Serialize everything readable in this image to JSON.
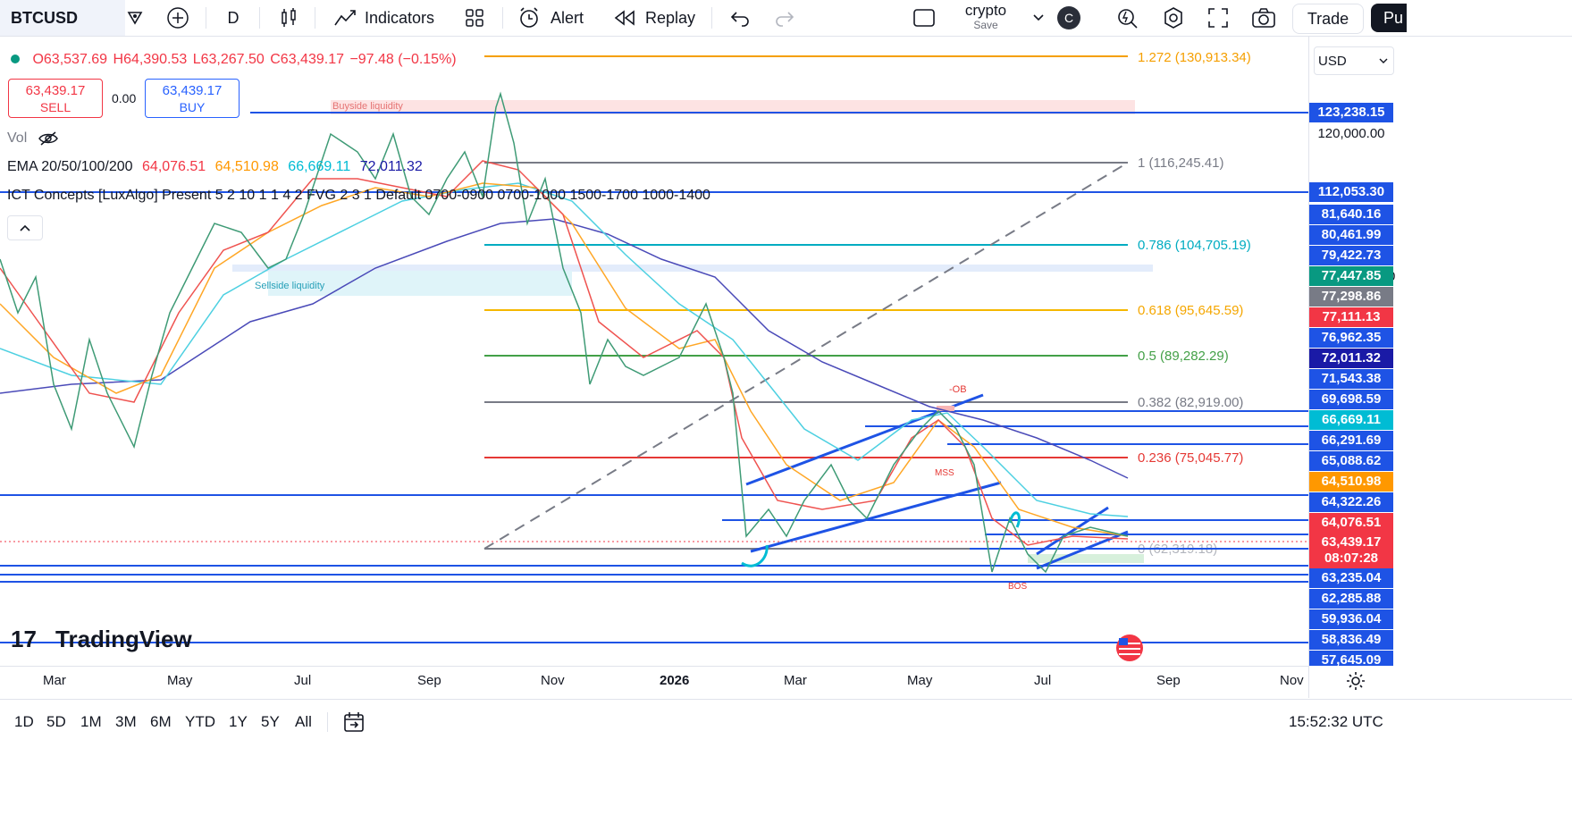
{
  "toolbar": {
    "symbol": "BTCUSD",
    "interval": "D",
    "indicators_label": "Indicators",
    "alert_label": "Alert",
    "replay_label": "Replay",
    "layout_name": "crypto",
    "layout_save": "Save",
    "avatar_letter": "C",
    "trade_label": "Trade",
    "publish_label": "Pu"
  },
  "legend": {
    "open": "O63,537.69",
    "high": "H64,390.53",
    "low": "L63,267.50",
    "close": "C63,439.17",
    "change": "−97.48 (−0.15%)",
    "sell_price": "63,439.17",
    "sell_label": "SELL",
    "spread": "0.00",
    "buy_price": "63,439.17",
    "buy_label": "BUY",
    "vol_label": "Vol",
    "ema_label": "EMA 20/50/100/200",
    "ema20": "64,076.51",
    "ema50": "64,510.98",
    "ema100": "66,669.11",
    "ema200": "72,011.32",
    "ict_label": "ICT Concepts [LuxAlgo] Present 5 2 10 1 1 4 2 FVG 2 3 1 Default 0700-0900 0700-1000 1500-1700 1000-1400"
  },
  "currency": "USD",
  "annotations": {
    "buyside": "Buyside liquidity",
    "sellside": "Sellside liquidity",
    "ob": "-OB",
    "mss": "MSS",
    "bos": "BOS"
  },
  "fib_levels": [
    {
      "label": "1.272 (130,913.34)",
      "color": "#f59f00"
    },
    {
      "label": "1 (116,245.41)",
      "color": "#787b86"
    },
    {
      "label": "0.786 (104,705.19)",
      "color": "#00acc1"
    },
    {
      "label": "0.618 (95,645.59)",
      "color": "#f5b700"
    },
    {
      "label": "0.5 (89,282.29)",
      "color": "#43a047"
    },
    {
      "label": "0.382 (82,919.00)",
      "color": "#787b86"
    },
    {
      "label": "0.236 (75,045.77)",
      "color": "#e53935"
    },
    {
      "label": "0 (62,319.18)",
      "color": "#787b86"
    }
  ],
  "price_scale": {
    "tags": [
      {
        "value": "123,238.15",
        "bg": "#1e53e5"
      },
      {
        "value": "112,053.30",
        "bg": "#1e53e5"
      },
      {
        "value": "81,640.16",
        "bg": "#1e53e5"
      },
      {
        "value": "80,461.99",
        "bg": "#1e53e5"
      },
      {
        "value": "79,422.73",
        "bg": "#1e53e5"
      },
      {
        "value": "77,447.85",
        "bg": "#089981"
      },
      {
        "value": "77,298.86",
        "bg": "#787b86"
      },
      {
        "value": "77,111.13",
        "bg": "#f23645"
      },
      {
        "value": "76,962.35",
        "bg": "#1e53e5"
      },
      {
        "value": "72,011.32",
        "bg": "#1a1aa6"
      },
      {
        "value": "71,543.38",
        "bg": "#1e53e5"
      },
      {
        "value": "69,698.59",
        "bg": "#1e53e5"
      },
      {
        "value": "66,669.11",
        "bg": "#00bcd4"
      },
      {
        "value": "66,291.69",
        "bg": "#1e53e5"
      },
      {
        "value": "65,088.62",
        "bg": "#1e53e5"
      },
      {
        "value": "64,510.98",
        "bg": "#ff9800"
      },
      {
        "value": "64,322.26",
        "bg": "#1e53e5"
      },
      {
        "value": "64,076.51",
        "bg": "#f23645"
      },
      {
        "value": "63,439.17",
        "bg": "#f23645"
      },
      {
        "value": "08:07:28",
        "bg": "#f23645"
      },
      {
        "value": "63,235.04",
        "bg": "#1e53e5"
      },
      {
        "value": "62,285.88",
        "bg": "#1e53e5"
      },
      {
        "value": "59,936.04",
        "bg": "#1e53e5"
      },
      {
        "value": "58,836.49",
        "bg": "#1e53e5"
      },
      {
        "value": "57,645.09",
        "bg": "#1e53e5"
      }
    ],
    "plain_label": "120,000.00",
    "edge_char": "0"
  },
  "time_axis": [
    "Mar",
    "May",
    "Jul",
    "Sep",
    "Nov",
    "2026",
    "Mar",
    "May",
    "Jul",
    "Sep",
    "Nov"
  ],
  "watermark": "TradingView",
  "ranges": [
    "1D",
    "5D",
    "1M",
    "3M",
    "6M",
    "YTD",
    "1Y",
    "5Y",
    "All"
  ],
  "clock": "15:52:32 UTC"
}
